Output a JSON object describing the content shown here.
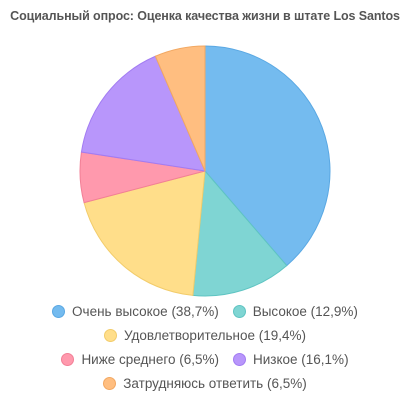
{
  "chart_data": {
    "type": "pie",
    "title": "Социальный опрос: Оценка качества жизни в штате Los Santos",
    "legend_position": "bottom",
    "series": [
      {
        "label": "Очень высокое (38,7%)",
        "value": 38.7,
        "color": "#74BBEF",
        "stroke": "#5AA8E3"
      },
      {
        "label": "Высокое (12,9%)",
        "value": 12.9,
        "color": "#7FD5D3",
        "stroke": "#5FC4C2"
      },
      {
        "label": "Удовлетворительное (19,4%)",
        "value": 19.4,
        "color": "#FFDE8A",
        "stroke": "#F2CC6B"
      },
      {
        "label": "Ниже среднего (6,5%)",
        "value": 6.5,
        "color": "#FF99AD",
        "stroke": "#F27F96"
      },
      {
        "label": "Низкое (16,1%)",
        "value": 16.1,
        "color": "#B896FB",
        "stroke": "#A27CF2"
      },
      {
        "label": "Затрудняюсь ответить (6,5%)",
        "value": 6.5,
        "color": "#FFBE80",
        "stroke": "#F2A862"
      }
    ]
  }
}
